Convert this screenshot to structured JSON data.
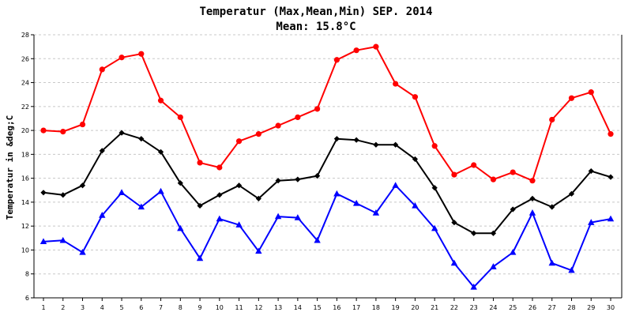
{
  "chart_data": {
    "type": "line",
    "title": "Temperatur (Max,Mean,Min) SEP. 2014",
    "subtitle": "Mean: 15.8°C",
    "ylabel": "Temperatur in &deg;C",
    "xlabel": "",
    "ylim": [
      6,
      28
    ],
    "yticks": [
      6,
      8,
      10,
      12,
      14,
      16,
      18,
      20,
      22,
      24,
      26,
      28
    ],
    "categories": [
      "1",
      "2",
      "3",
      "4",
      "5",
      "6",
      "7",
      "8",
      "9",
      "10",
      "11",
      "12",
      "13",
      "14",
      "15",
      "16",
      "17",
      "18",
      "19",
      "20",
      "21",
      "22",
      "23",
      "24",
      "25",
      "26",
      "27",
      "28",
      "29",
      "30"
    ],
    "grid": true,
    "series": [
      {
        "name": "Max",
        "color": "#ff0000",
        "marker": "circle",
        "values": [
          20.0,
          19.9,
          20.5,
          25.1,
          26.1,
          26.4,
          22.5,
          21.1,
          17.3,
          16.9,
          19.1,
          19.7,
          20.4,
          21.1,
          21.8,
          25.9,
          26.7,
          27.0,
          23.9,
          22.8,
          18.7,
          16.3,
          17.1,
          15.9,
          16.5,
          15.8,
          20.9,
          22.7,
          23.2,
          19.7
        ]
      },
      {
        "name": "Mean",
        "color": "#000000",
        "marker": "diamond",
        "values": [
          14.8,
          14.6,
          15.4,
          18.3,
          19.8,
          19.3,
          18.2,
          15.6,
          13.7,
          14.6,
          15.4,
          14.3,
          15.8,
          15.9,
          16.2,
          19.3,
          19.2,
          18.8,
          18.8,
          17.6,
          15.2,
          12.3,
          11.4,
          11.4,
          13.4,
          14.3,
          13.6,
          14.7,
          16.6,
          16.1
        ]
      },
      {
        "name": "Min",
        "color": "#0000ff",
        "marker": "triangle",
        "values": [
          10.7,
          10.8,
          9.8,
          12.9,
          14.8,
          13.6,
          14.9,
          11.8,
          9.3,
          12.6,
          12.1,
          9.9,
          12.8,
          12.7,
          10.8,
          14.7,
          13.9,
          13.1,
          15.4,
          13.7,
          11.8,
          8.9,
          6.9,
          8.6,
          9.8,
          13.1,
          8.9,
          8.3,
          12.3,
          12.6
        ]
      }
    ]
  }
}
